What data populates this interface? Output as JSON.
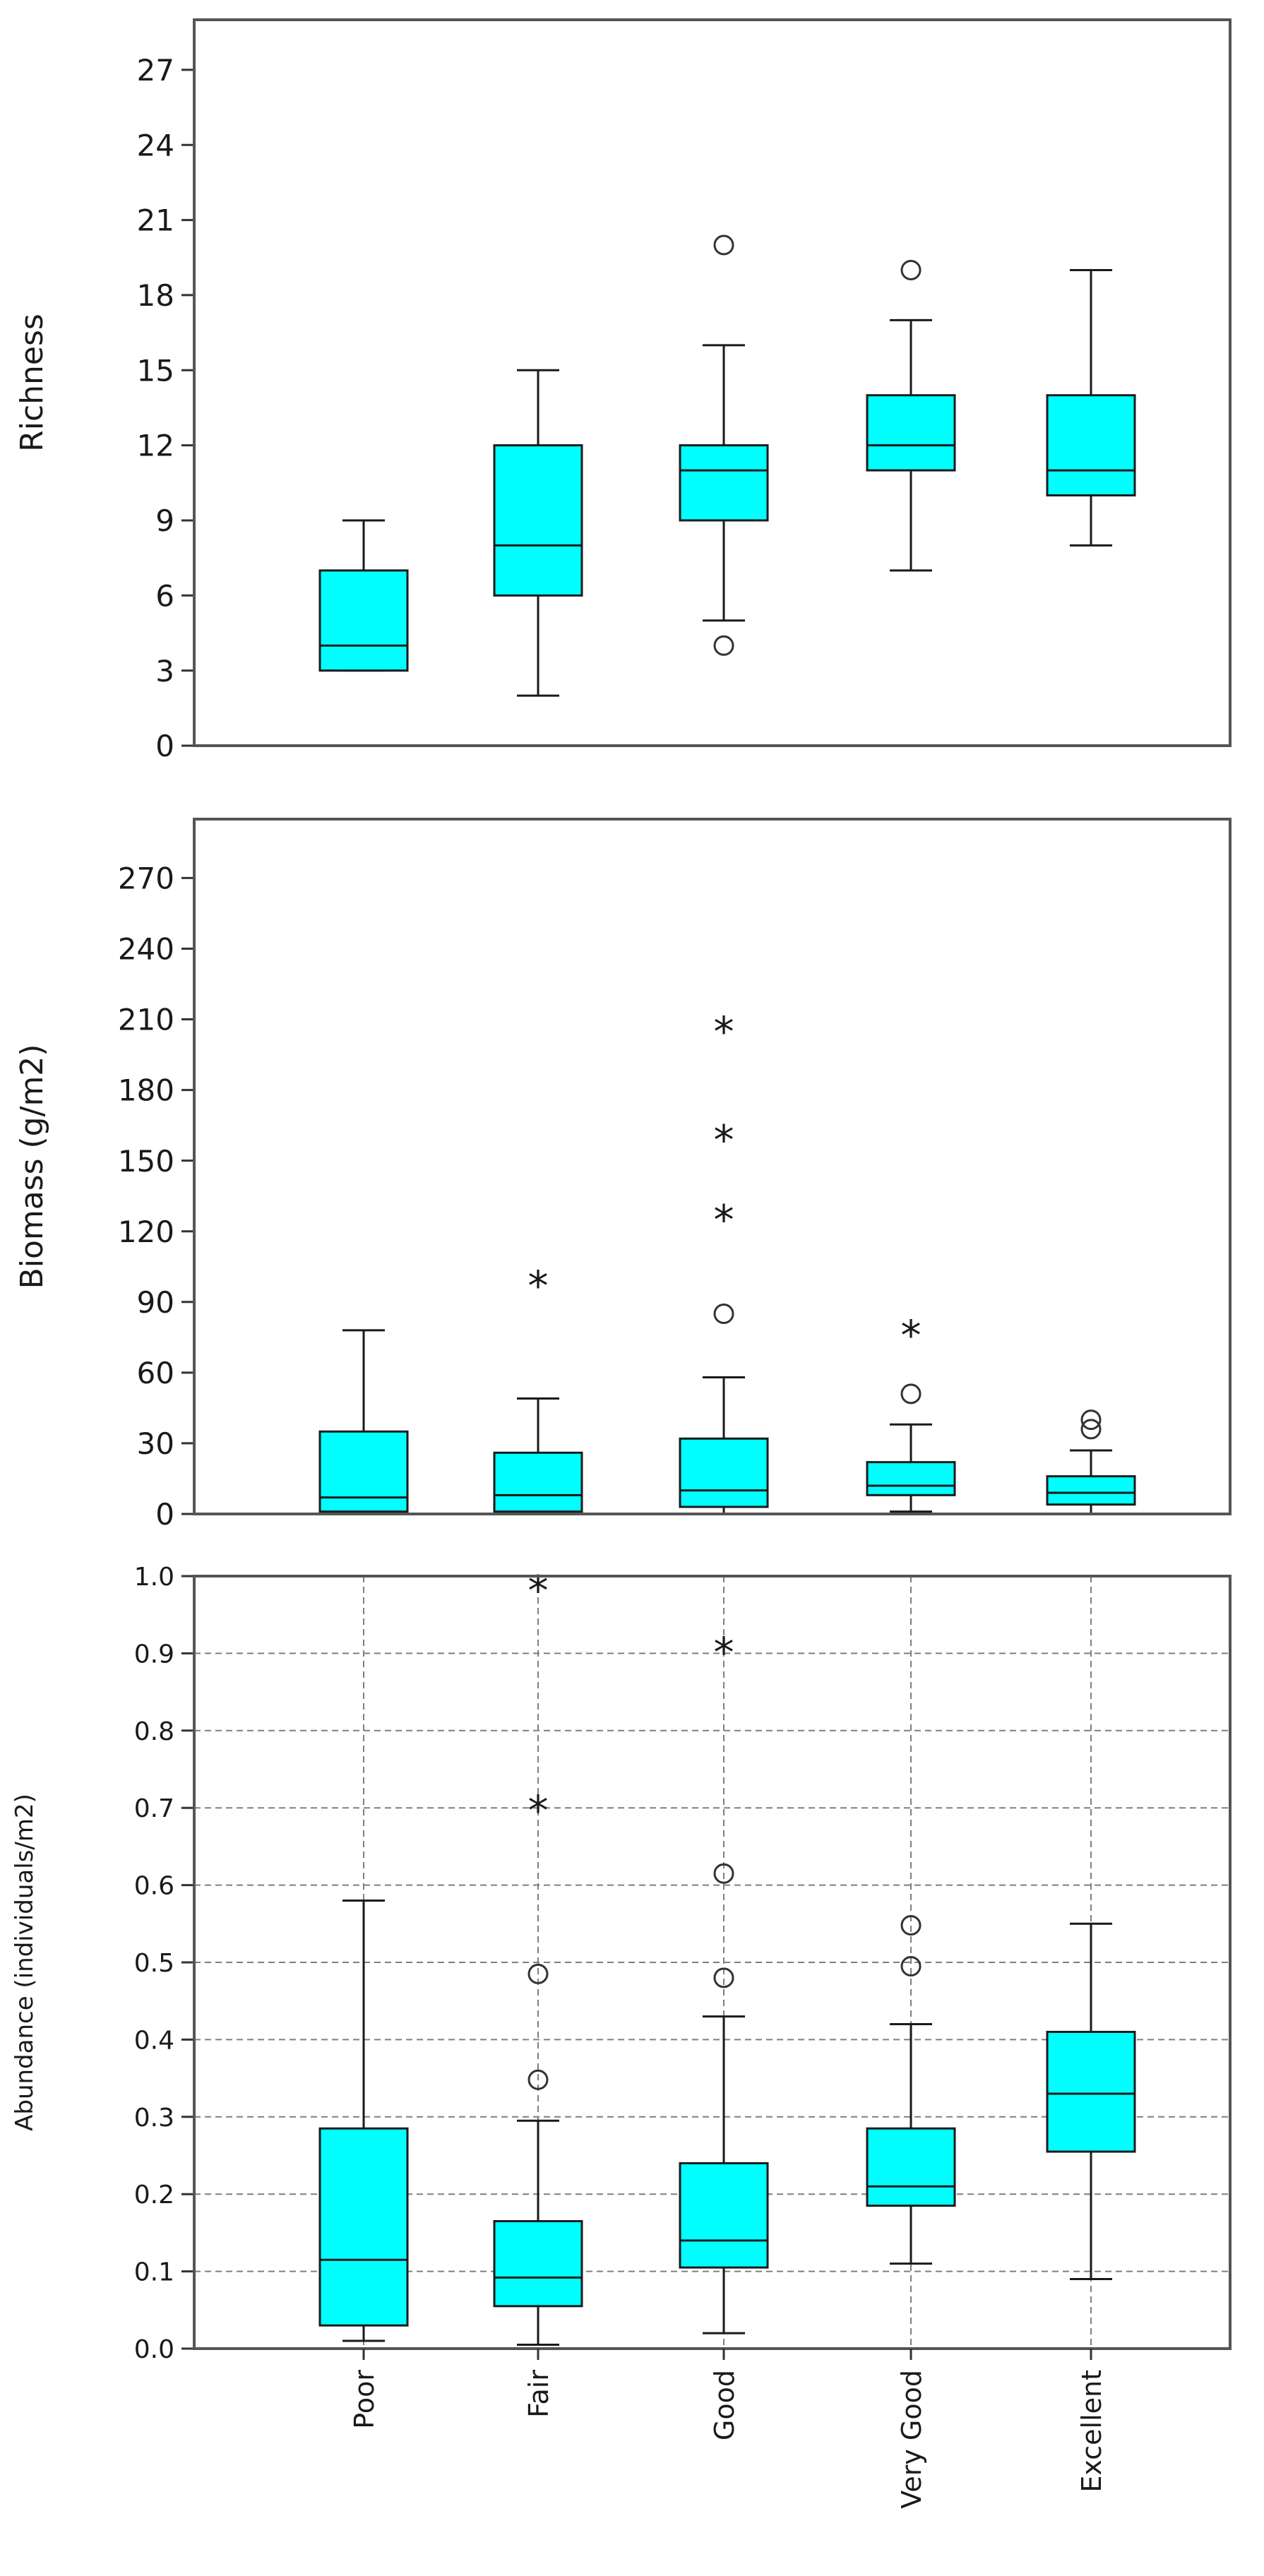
{
  "colors": {
    "box_fill": "#00FFFF",
    "box_stroke": "#1a1a1a",
    "frame": "#555555",
    "grid": "#7f7f7f"
  },
  "categories": [
    "Poor",
    "Fair",
    "Good",
    "Very Good",
    "Excellent"
  ],
  "chart_data": [
    {
      "type": "box",
      "ylabel": "Richness",
      "ylim": [
        0,
        29
      ],
      "yticks": [
        0,
        3,
        6,
        9,
        12,
        15,
        18,
        21,
        24,
        27
      ],
      "grid": false,
      "boxes": [
        {
          "category": "Poor",
          "q1": 3,
          "median": 4,
          "q3": 7,
          "whisker_low": 3,
          "whisker_high": 9,
          "outliers": [],
          "extremes": []
        },
        {
          "category": "Fair",
          "q1": 6,
          "median": 8,
          "q3": 12,
          "whisker_low": 2,
          "whisker_high": 15,
          "outliers": [],
          "extremes": []
        },
        {
          "category": "Good",
          "q1": 9,
          "median": 11,
          "q3": 12,
          "whisker_low": 5,
          "whisker_high": 16,
          "outliers": [
            4,
            20
          ],
          "extremes": []
        },
        {
          "category": "Very Good",
          "q1": 11,
          "median": 12,
          "q3": 14,
          "whisker_low": 7,
          "whisker_high": 17,
          "outliers": [
            19
          ],
          "extremes": []
        },
        {
          "category": "Excellent",
          "q1": 10,
          "median": 11,
          "q3": 14,
          "whisker_low": 8,
          "whisker_high": 19,
          "outliers": [],
          "extremes": []
        }
      ]
    },
    {
      "type": "box",
      "ylabel": "Biomass (g/m2)",
      "ylim": [
        0,
        295
      ],
      "yticks": [
        0,
        30,
        60,
        90,
        120,
        150,
        180,
        210,
        240,
        270
      ],
      "grid": false,
      "boxes": [
        {
          "category": "Poor",
          "q1": 1,
          "median": 7,
          "q3": 35,
          "whisker_low": 0,
          "whisker_high": 78,
          "outliers": [],
          "extremes": []
        },
        {
          "category": "Fair",
          "q1": 1,
          "median": 8,
          "q3": 26,
          "whisker_low": 0,
          "whisker_high": 49,
          "outliers": [],
          "extremes": [
            98
          ]
        },
        {
          "category": "Good",
          "q1": 3,
          "median": 10,
          "q3": 32,
          "whisker_low": 0,
          "whisker_high": 58,
          "outliers": [
            85
          ],
          "extremes": [
            126,
            160,
            206
          ]
        },
        {
          "category": "Very Good",
          "q1": 8,
          "median": 12,
          "q3": 22,
          "whisker_low": 1,
          "whisker_high": 38,
          "outliers": [
            51
          ],
          "extremes": [
            77
          ]
        },
        {
          "category": "Excellent",
          "q1": 4,
          "median": 9,
          "q3": 16,
          "whisker_low": 0,
          "whisker_high": 27,
          "outliers": [
            36,
            40
          ],
          "extremes": []
        }
      ]
    },
    {
      "type": "box",
      "ylabel": "Abundance (individuals/m2)",
      "ylim": [
        0,
        1.0
      ],
      "yticks": [
        "0.0",
        "0.1",
        "0.2",
        "0.3",
        "0.4",
        "0.5",
        "0.6",
        "0.7",
        "0.8",
        "0.9",
        "1.0"
      ],
      "grid": true,
      "boxes": [
        {
          "category": "Poor",
          "q1": 0.03,
          "median": 0.115,
          "q3": 0.285,
          "whisker_low": 0.01,
          "whisker_high": 0.58,
          "outliers": [],
          "extremes": []
        },
        {
          "category": "Fair",
          "q1": 0.055,
          "median": 0.092,
          "q3": 0.165,
          "whisker_low": 0.005,
          "whisker_high": 0.295,
          "outliers": [
            0.348,
            0.485
          ],
          "extremes": [
            0.7,
            0.985
          ]
        },
        {
          "category": "Good",
          "q1": 0.105,
          "median": 0.14,
          "q3": 0.24,
          "whisker_low": 0.02,
          "whisker_high": 0.43,
          "outliers": [
            0.48,
            0.615
          ],
          "extremes": [
            0.905
          ]
        },
        {
          "category": "Very Good",
          "q1": 0.185,
          "median": 0.21,
          "q3": 0.285,
          "whisker_low": 0.11,
          "whisker_high": 0.42,
          "outliers": [
            0.495,
            0.548
          ],
          "extremes": []
        },
        {
          "category": "Excellent",
          "q1": 0.255,
          "median": 0.33,
          "q3": 0.41,
          "whisker_low": 0.09,
          "whisker_high": 0.55,
          "outliers": [],
          "extremes": []
        }
      ]
    }
  ]
}
